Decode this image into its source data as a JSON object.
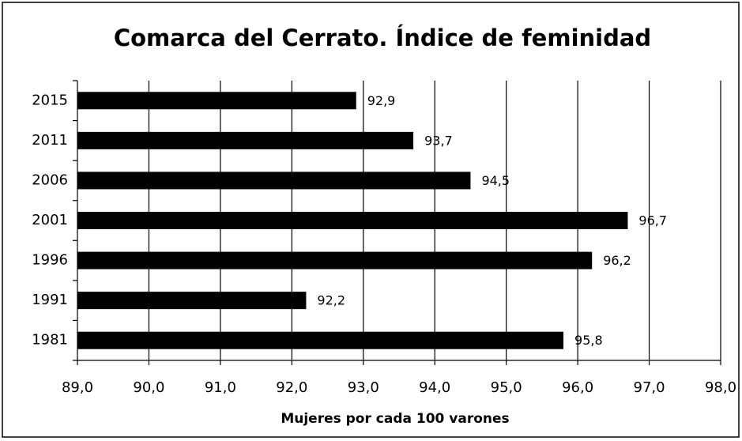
{
  "chart_data": {
    "type": "bar",
    "orientation": "horizontal",
    "title": "Comarca del Cerrato. Índice de feminidad",
    "x_label": "Mujeres por cada 100 varones",
    "categories": [
      "2015",
      "2011",
      "2006",
      "2001",
      "1996",
      "1991",
      "1981"
    ],
    "values": [
      92.9,
      93.7,
      94.5,
      96.7,
      96.2,
      92.2,
      95.8
    ],
    "value_labels": [
      "92,9",
      "93,7",
      "94,5",
      "96,7",
      "96,2",
      "92,2",
      "95,8"
    ],
    "color": "#000000",
    "xlim": [
      89,
      98
    ],
    "xticks": [
      {
        "value": 89,
        "label": "89,0"
      },
      {
        "value": 90,
        "label": "90,0"
      },
      {
        "value": 91,
        "label": "91,0"
      },
      {
        "value": 92,
        "label": "92,0"
      },
      {
        "value": 93,
        "label": "93,0"
      },
      {
        "value": 94,
        "label": "94,0"
      },
      {
        "value": 95,
        "label": "95,0"
      },
      {
        "value": 96,
        "label": "96,0"
      },
      {
        "value": 97,
        "label": "97,0"
      },
      {
        "value": 98,
        "label": "98,0"
      }
    ],
    "grid": true
  }
}
